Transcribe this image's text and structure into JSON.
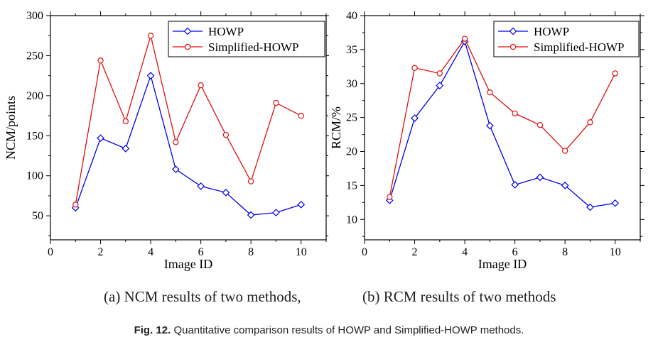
{
  "chart_data": [
    {
      "type": "line",
      "xlabel": "Image ID",
      "ylabel": "NCM/points",
      "xlim": [
        0,
        11
      ],
      "ylim": [
        20,
        300
      ],
      "xticks": [
        0,
        2,
        4,
        6,
        8,
        10
      ],
      "yticks": [
        50,
        100,
        150,
        200,
        250,
        300
      ],
      "x": [
        1,
        2,
        3,
        4,
        5,
        6,
        7,
        8,
        9,
        10
      ],
      "legend_position": "top-right",
      "grid": false,
      "series": [
        {
          "name": "HOWP",
          "color": "#0000ee",
          "marker": "diamond",
          "values": [
            60,
            147,
            134,
            225,
            108,
            87,
            79,
            51,
            54,
            64
          ]
        },
        {
          "name": "Simplified-HOWP",
          "color": "#e01010",
          "marker": "circle",
          "values": [
            64,
            244,
            168,
            275,
            142,
            213,
            151,
            93,
            191,
            175
          ]
        }
      ]
    },
    {
      "type": "line",
      "xlabel": "Image ID",
      "ylabel": "RCM/%",
      "xlim": [
        0,
        11
      ],
      "ylim": [
        7,
        40
      ],
      "xticks": [
        0,
        2,
        4,
        6,
        8,
        10
      ],
      "yticks": [
        10,
        15,
        20,
        25,
        30,
        35,
        40
      ],
      "x": [
        1,
        2,
        3,
        4,
        5,
        6,
        7,
        8,
        9,
        10
      ],
      "legend_position": "top-right",
      "grid": false,
      "series": [
        {
          "name": "HOWP",
          "color": "#0000ee",
          "marker": "diamond",
          "values": [
            12.8,
            24.9,
            29.7,
            36.2,
            23.8,
            15.1,
            16.2,
            15.0,
            11.8,
            12.4
          ]
        },
        {
          "name": "Simplified-HOWP",
          "color": "#e01010",
          "marker": "circle",
          "values": [
            13.3,
            32.3,
            31.5,
            36.6,
            28.7,
            25.6,
            23.9,
            20.1,
            24.3,
            31.5
          ]
        }
      ]
    }
  ],
  "captions": {
    "sub_a": "(a) NCM results of two methods,",
    "sub_b": "(b) RCM results of two methods",
    "fig_label": "Fig. 12.",
    "fig_text": "Quantitative comparison results of HOWP and Simplified-HOWP methods."
  }
}
